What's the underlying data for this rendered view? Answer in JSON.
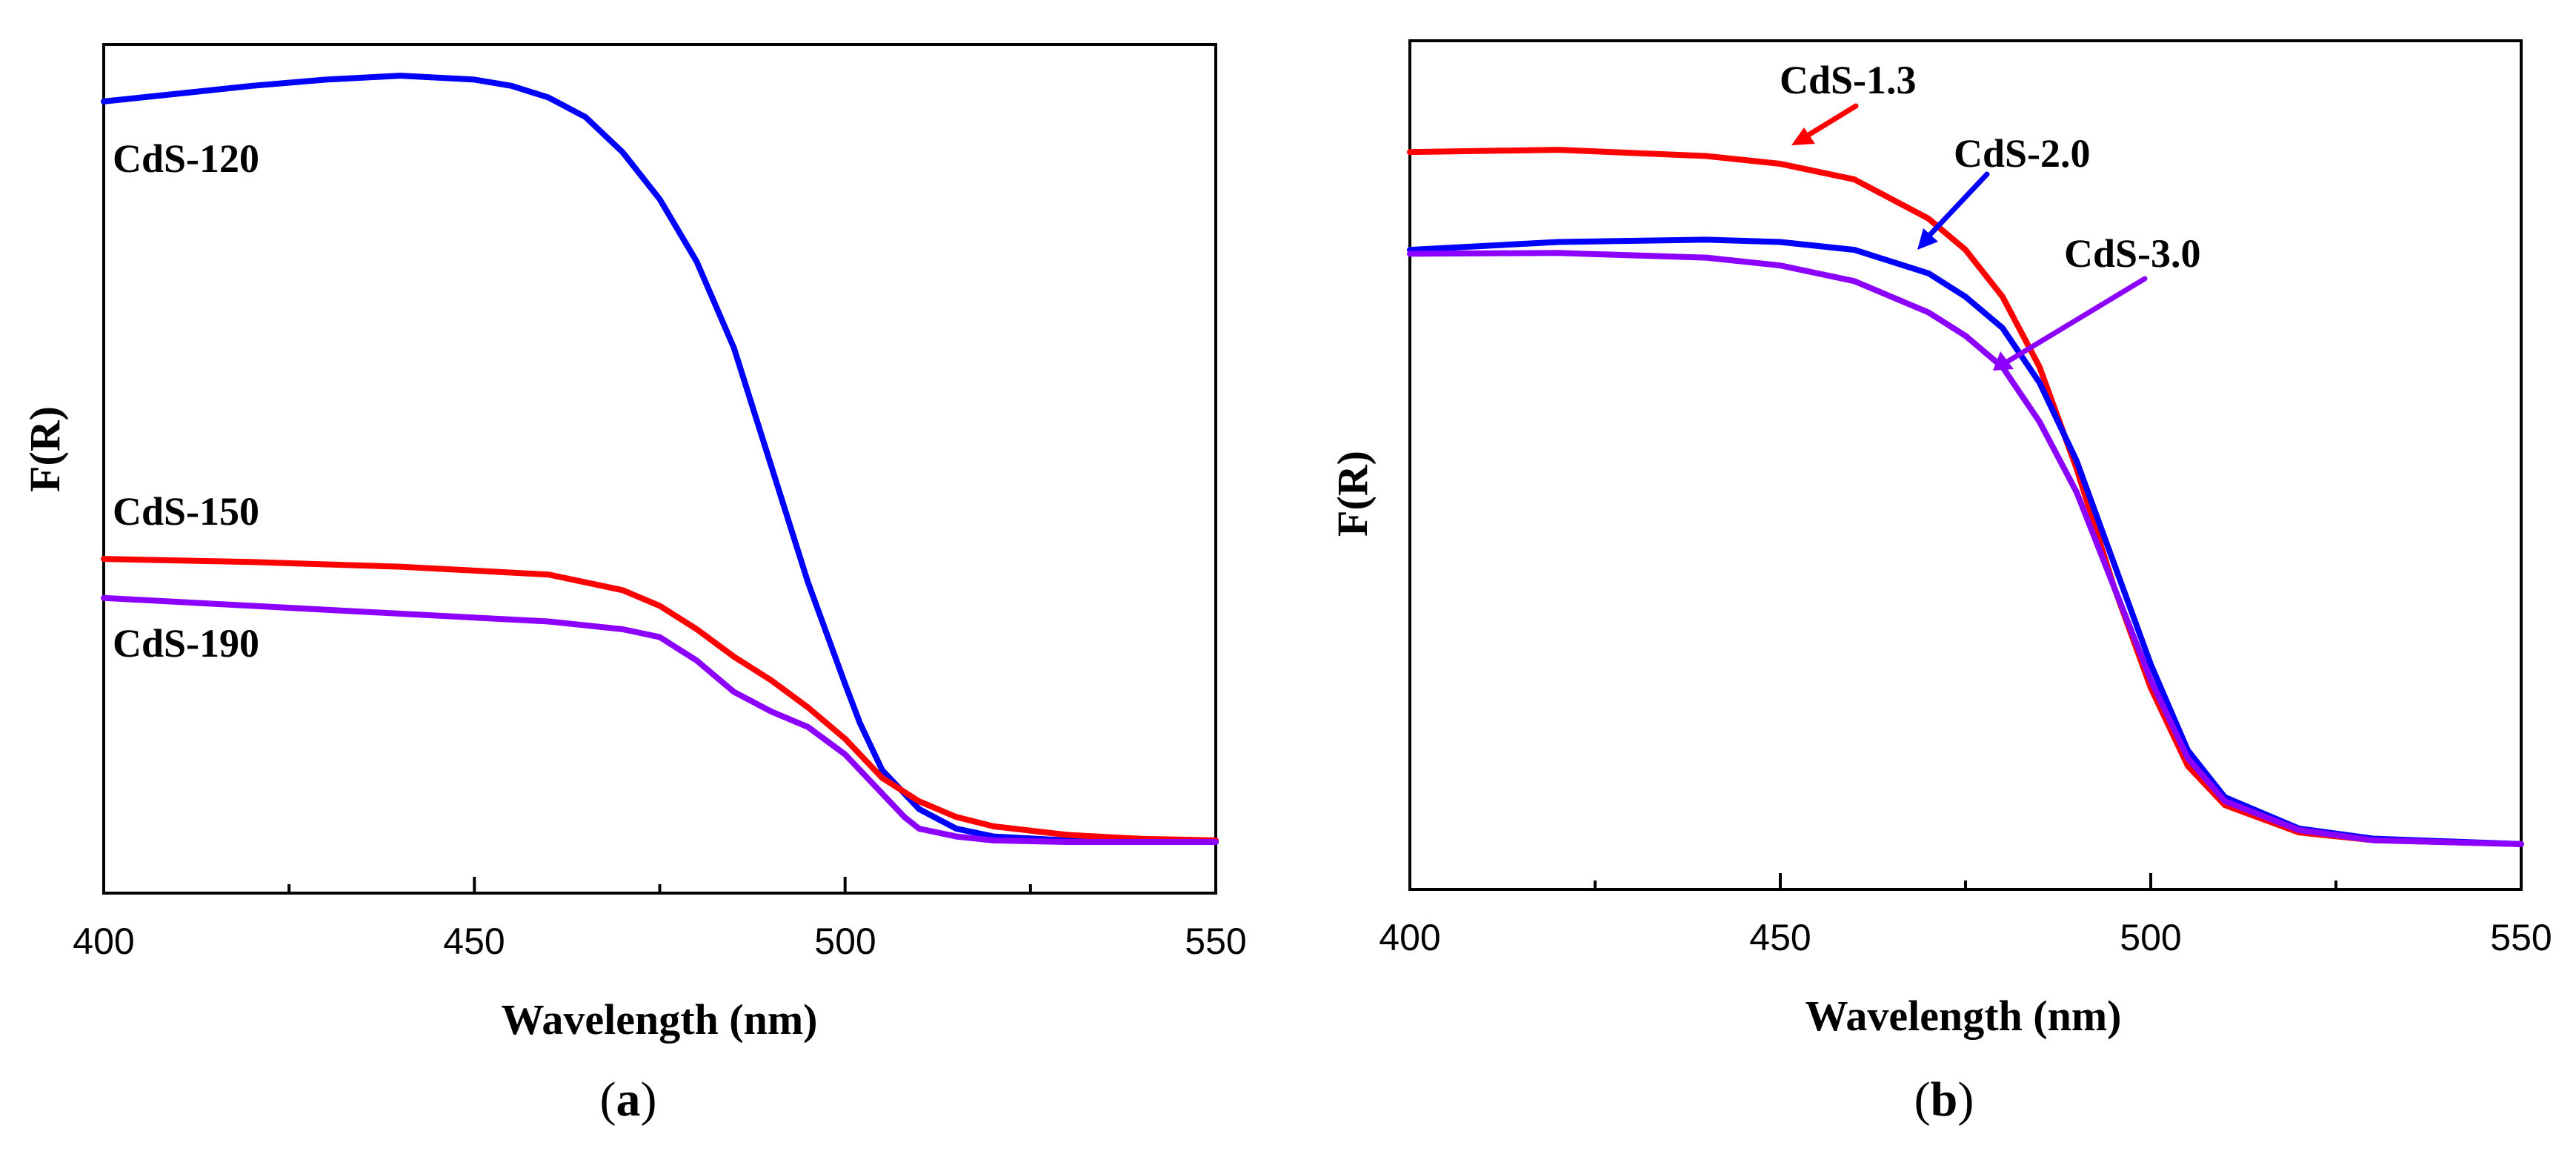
{
  "chart_data": [
    {
      "type": "line",
      "panel": "a",
      "caption_open": "(",
      "caption_letter": "a",
      "caption_close": ")",
      "xlabel": "Wavelength (nm)",
      "ylabel": "F(R)",
      "xlim": [
        400,
        550
      ],
      "ylim": [
        0,
        1
      ],
      "xticks": [
        "400",
        "450",
        "500",
        "550"
      ],
      "series": [
        {
          "name": "CdS-120",
          "color": "#0000ff",
          "x": [
            400,
            405,
            410,
            420,
            430,
            440,
            450,
            455,
            460,
            465,
            470,
            475,
            480,
            485,
            490,
            495,
            500,
            502,
            505,
            510,
            515,
            520,
            530,
            540,
            550
          ],
          "y": [
            0.965,
            0.97,
            0.975,
            0.985,
            0.993,
            0.998,
            0.993,
            0.985,
            0.97,
            0.945,
            0.9,
            0.84,
            0.76,
            0.65,
            0.5,
            0.35,
            0.22,
            0.17,
            0.11,
            0.06,
            0.035,
            0.025,
            0.02,
            0.018,
            0.018
          ]
        },
        {
          "name": "CdS-150",
          "color": "#ff0000",
          "x": [
            400,
            420,
            440,
            460,
            470,
            475,
            480,
            485,
            490,
            495,
            500,
            505,
            510,
            515,
            520,
            530,
            540,
            550
          ],
          "y": [
            0.38,
            0.376,
            0.37,
            0.36,
            0.34,
            0.32,
            0.29,
            0.255,
            0.225,
            0.19,
            0.15,
            0.1,
            0.07,
            0.05,
            0.038,
            0.027,
            0.022,
            0.02
          ]
        },
        {
          "name": "CdS-190",
          "color": "#8b00ff",
          "x": [
            400,
            420,
            440,
            460,
            470,
            475,
            480,
            485,
            490,
            495,
            500,
            505,
            508,
            510,
            515,
            520,
            530,
            540,
            550
          ],
          "y": [
            0.33,
            0.32,
            0.31,
            0.3,
            0.29,
            0.28,
            0.25,
            0.21,
            0.185,
            0.165,
            0.13,
            0.08,
            0.05,
            0.035,
            0.025,
            0.02,
            0.018,
            0.018,
            0.018
          ]
        }
      ],
      "annotations": [
        {
          "text": "CdS-120",
          "series": "CdS-120"
        },
        {
          "text": "CdS-150",
          "series": "CdS-150"
        },
        {
          "text": "CdS-190",
          "series": "CdS-190"
        }
      ]
    },
    {
      "type": "line",
      "panel": "b",
      "caption_open": "(",
      "caption_letter": "b",
      "caption_close": ")",
      "xlabel": "Wavelength (nm)",
      "ylabel": "F(R)",
      "xlim": [
        400,
        550
      ],
      "ylim": [
        0,
        1
      ],
      "xticks": [
        "400",
        "450",
        "500",
        "550"
      ],
      "series": [
        {
          "name": "CdS-1.3",
          "color": "#ff0000",
          "x": [
            400,
            420,
            440,
            450,
            460,
            470,
            475,
            480,
            485,
            490,
            495,
            500,
            505,
            510,
            520,
            530,
            550
          ],
          "y": [
            0.905,
            0.908,
            0.9,
            0.89,
            0.87,
            0.82,
            0.78,
            0.72,
            0.63,
            0.5,
            0.35,
            0.22,
            0.12,
            0.07,
            0.035,
            0.025,
            0.02
          ]
        },
        {
          "name": "CdS-2.0",
          "color": "#0000ff",
          "x": [
            400,
            420,
            440,
            450,
            460,
            470,
            475,
            480,
            485,
            490,
            495,
            500,
            505,
            510,
            520,
            530,
            550
          ],
          "y": [
            0.78,
            0.79,
            0.793,
            0.79,
            0.78,
            0.75,
            0.72,
            0.68,
            0.61,
            0.51,
            0.38,
            0.25,
            0.14,
            0.08,
            0.04,
            0.027,
            0.02
          ]
        },
        {
          "name": "CdS-3.0",
          "color": "#8b00ff",
          "x": [
            400,
            420,
            440,
            450,
            460,
            470,
            475,
            480,
            485,
            490,
            495,
            500,
            505,
            510,
            520,
            530,
            550
          ],
          "y": [
            0.775,
            0.776,
            0.77,
            0.76,
            0.74,
            0.7,
            0.67,
            0.63,
            0.56,
            0.47,
            0.35,
            0.23,
            0.13,
            0.075,
            0.038,
            0.025,
            0.02
          ]
        }
      ],
      "annotations": [
        {
          "text": "CdS-1.3",
          "series": "CdS-1.3"
        },
        {
          "text": "CdS-2.0",
          "series": "CdS-2.0"
        },
        {
          "text": "CdS-3.0",
          "series": "CdS-3.0"
        }
      ]
    }
  ]
}
